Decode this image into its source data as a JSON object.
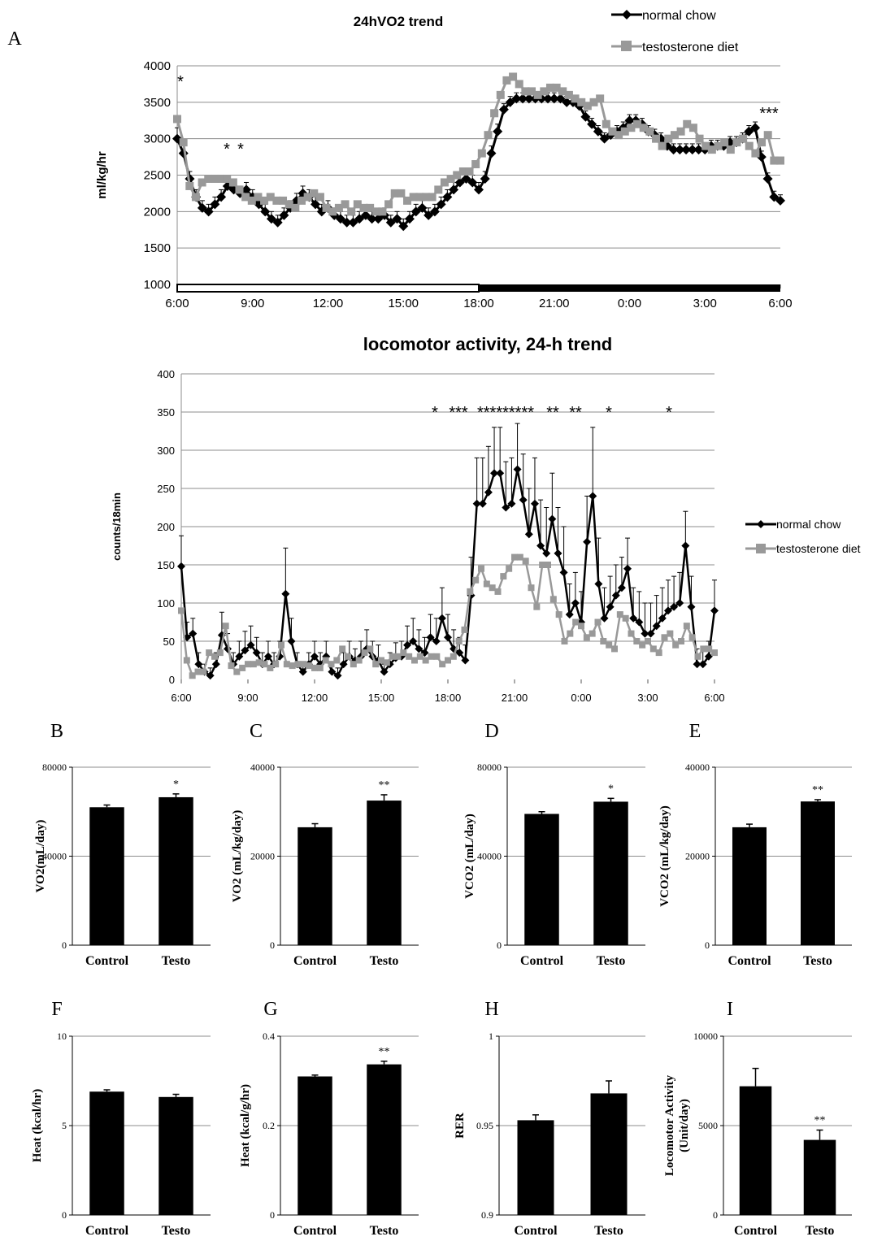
{
  "chart_data": [
    {
      "panel": "A",
      "type": "line",
      "title": "24hVO2 trend",
      "ylabel": "ml/kg/hr",
      "ylim": [
        1000,
        4000
      ],
      "yticks": [
        "1000",
        "1500",
        "2000",
        "2500",
        "3000",
        "3500",
        "4000"
      ],
      "xticks": [
        "6:00",
        "9:00",
        "12:00",
        "15:00",
        "18:00",
        "21:00",
        "0:00",
        "3:00",
        "6:00"
      ],
      "light_dark_bar": {
        "light": "6:00-18:00",
        "dark": "18:00-6:00"
      },
      "legend_position": "top-right",
      "series": [
        {
          "name": "normal chow",
          "color": "#000000",
          "marker": "diamond",
          "values": [
            3000,
            2800,
            2450,
            2200,
            2050,
            2000,
            2100,
            2200,
            2350,
            2300,
            2250,
            2300,
            2200,
            2100,
            2000,
            1900,
            1850,
            1950,
            2050,
            2150,
            2250,
            2200,
            2100,
            2000,
            2050,
            1950,
            1900,
            1850,
            1850,
            1900,
            1950,
            1900,
            1900,
            1950,
            1850,
            1900,
            1800,
            1900,
            2000,
            2050,
            1950,
            2000,
            2100,
            2200,
            2300,
            2400,
            2450,
            2400,
            2300,
            2450,
            2800,
            3100,
            3400,
            3500,
            3550,
            3550,
            3550,
            3550,
            3550,
            3550,
            3550,
            3550,
            3500,
            3500,
            3450,
            3300,
            3200,
            3100,
            3000,
            3050,
            3100,
            3150,
            3250,
            3250,
            3200,
            3100,
            3050,
            3000,
            2900,
            2850,
            2850,
            2850,
            2850,
            2850,
            2850,
            2900,
            2900,
            2900,
            2950,
            2950,
            3000,
            3100,
            3150,
            2750,
            2450,
            2200,
            2150
          ],
          "errors": [
            150,
            120,
            100,
            100,
            100,
            100,
            100,
            100,
            100,
            100,
            100,
            100,
            100,
            100,
            100,
            100,
            100,
            100,
            100,
            100,
            100,
            100,
            100,
            100,
            100,
            100,
            100,
            100,
            100,
            100,
            100,
            100,
            100,
            100,
            100,
            100,
            100,
            100,
            100,
            100,
            100,
            100,
            100,
            100,
            100,
            100,
            100,
            100,
            100,
            100,
            100,
            100,
            80,
            80,
            80,
            80,
            80,
            80,
            80,
            80,
            80,
            80,
            80,
            80,
            80,
            80,
            80,
            80,
            80,
            80,
            80,
            80,
            80,
            80,
            80,
            80,
            80,
            80,
            80,
            80,
            80,
            80,
            80,
            80,
            80,
            80,
            80,
            80,
            80,
            80,
            80,
            80,
            80,
            80,
            80,
            80,
            80
          ]
        },
        {
          "name": "testosterone diet",
          "color": "#999999",
          "marker": "square",
          "values": [
            3270,
            2950,
            2350,
            2200,
            2400,
            2450,
            2450,
            2450,
            2450,
            2400,
            2300,
            2200,
            2150,
            2200,
            2150,
            2200,
            2150,
            2150,
            2100,
            2050,
            2150,
            2200,
            2250,
            2200,
            2050,
            2000,
            2050,
            2100,
            2000,
            2100,
            2050,
            2050,
            2000,
            2000,
            2100,
            2250,
            2250,
            2150,
            2200,
            2200,
            2200,
            2200,
            2300,
            2400,
            2450,
            2500,
            2550,
            2550,
            2650,
            2800,
            3050,
            3350,
            3600,
            3800,
            3850,
            3750,
            3650,
            3650,
            3600,
            3650,
            3700,
            3700,
            3650,
            3600,
            3550,
            3500,
            3450,
            3500,
            3550,
            3200,
            3100,
            3050,
            3100,
            3150,
            3200,
            3150,
            3100,
            3000,
            2900,
            3000,
            3050,
            3100,
            3200,
            3150,
            3000,
            2900,
            2850,
            2900,
            2950,
            2850,
            2950,
            3000,
            2900,
            2800,
            2950,
            3050,
            2700,
            2700
          ]
        }
      ],
      "annotations": [
        "*",
        "*",
        "*",
        "***"
      ]
    },
    {
      "panel": "A2",
      "type": "line",
      "title": "locomotor activity, 24-h trend",
      "ylabel": "counts/18min",
      "ylim": [
        0,
        400
      ],
      "yticks": [
        "0",
        "50",
        "100",
        "150",
        "200",
        "250",
        "300",
        "350",
        "400"
      ],
      "xticks": [
        "6:00",
        "9:00",
        "12:00",
        "15:00",
        "18:00",
        "21:00",
        "0:00",
        "3:00",
        "6:00"
      ],
      "legend_position": "right",
      "series": [
        {
          "name": "normal chow",
          "color": "#000000",
          "marker": "diamond",
          "values": [
            148,
            55,
            60,
            20,
            10,
            5,
            20,
            58,
            40,
            20,
            30,
            38,
            45,
            35,
            20,
            30,
            20,
            30,
            112,
            50,
            20,
            10,
            20,
            30,
            20,
            30,
            10,
            5,
            20,
            30,
            25,
            30,
            40,
            30,
            25,
            10,
            20,
            28,
            30,
            45,
            50,
            40,
            35,
            55,
            50,
            80,
            55,
            40,
            35,
            25,
            110,
            230,
            230,
            245,
            270,
            270,
            225,
            230,
            275,
            235,
            190,
            230,
            175,
            165,
            210,
            165,
            140,
            85,
            100,
            75,
            180,
            240,
            125,
            80,
            95,
            110,
            120,
            145,
            80,
            75,
            60,
            60,
            70,
            80,
            90,
            95,
            100,
            175,
            95,
            20,
            20,
            30,
            90
          ],
          "errors": [
            40,
            20,
            20,
            15,
            10,
            10,
            15,
            30,
            20,
            15,
            20,
            25,
            25,
            20,
            15,
            20,
            15,
            20,
            60,
            30,
            15,
            10,
            15,
            20,
            15,
            20,
            10,
            10,
            15,
            20,
            15,
            20,
            25,
            20,
            20,
            10,
            15,
            20,
            20,
            25,
            30,
            25,
            20,
            30,
            30,
            40,
            30,
            25,
            20,
            20,
            50,
            60,
            60,
            60,
            60,
            60,
            60,
            60,
            60,
            60,
            60,
            60,
            60,
            60,
            60,
            60,
            60,
            40,
            40,
            40,
            60,
            90,
            60,
            40,
            40,
            40,
            40,
            40,
            40,
            40,
            40,
            40,
            40,
            40,
            40,
            40,
            40,
            45,
            40,
            20,
            20,
            20,
            40
          ]
        },
        {
          "name": "testosterone diet",
          "color": "#999999",
          "marker": "square",
          "values": [
            90,
            25,
            5,
            10,
            10,
            35,
            30,
            35,
            70,
            18,
            10,
            15,
            20,
            20,
            22,
            20,
            15,
            20,
            45,
            20,
            18,
            20,
            20,
            18,
            15,
            15,
            25,
            20,
            25,
            40,
            30,
            20,
            25,
            35,
            40,
            20,
            25,
            22,
            30,
            30,
            35,
            30,
            25,
            30,
            25,
            30,
            30,
            20,
            25,
            30,
            50,
            65,
            115,
            130,
            145,
            125,
            120,
            115,
            135,
            145,
            160,
            160,
            155,
            120,
            95,
            150,
            150,
            105,
            85,
            50,
            60,
            75,
            70,
            55,
            60,
            75,
            50,
            45,
            40,
            85,
            80,
            60,
            50,
            45,
            50,
            40,
            35,
            55,
            60,
            45,
            50,
            70,
            55,
            30,
            40,
            40,
            35
          ]
        }
      ],
      "annotations": [
        "*",
        "***",
        "*********",
        "**",
        "**",
        "*",
        "*"
      ]
    },
    {
      "panel": "B",
      "type": "bar",
      "categories": [
        "Control",
        "Testo"
      ],
      "values": [
        62000,
        66500
      ],
      "errors": [
        1000,
        1500
      ],
      "ylabel": "VO2(mL/day)",
      "ylim": [
        0,
        80000
      ],
      "yticks": [
        "0",
        "40000",
        "80000"
      ],
      "significance": [
        "",
        "*"
      ]
    },
    {
      "panel": "C",
      "type": "bar",
      "categories": [
        "Control",
        "Testo"
      ],
      "values": [
        26500,
        32500
      ],
      "errors": [
        800,
        1300
      ],
      "ylabel": "VO2 (mL/kg/day)",
      "ylim": [
        0,
        40000
      ],
      "yticks": [
        "0",
        "20000",
        "40000"
      ],
      "significance": [
        "",
        "**"
      ]
    },
    {
      "panel": "D",
      "type": "bar",
      "categories": [
        "Control",
        "Testo"
      ],
      "values": [
        59000,
        64500
      ],
      "errors": [
        1000,
        1500
      ],
      "ylabel": "VCO2 (mL/day)",
      "ylim": [
        0,
        80000
      ],
      "yticks": [
        "0",
        "40000",
        "80000"
      ],
      "significance": [
        "",
        "*"
      ]
    },
    {
      "panel": "E",
      "type": "bar",
      "categories": [
        "Control",
        "Testo"
      ],
      "values": [
        26500,
        32300
      ],
      "errors": [
        700,
        400
      ],
      "ylabel": "VCO2 (mL/kg/day)",
      "ylim": [
        0,
        40000
      ],
      "yticks": [
        "0",
        "20000",
        "40000"
      ],
      "significance": [
        "",
        "**"
      ]
    },
    {
      "panel": "F",
      "type": "bar",
      "categories": [
        "Control",
        "Testo"
      ],
      "values": [
        6.9,
        6.6
      ],
      "errors": [
        0.1,
        0.15
      ],
      "ylabel": "Heat (kcal/hr)",
      "ylim": [
        0,
        10
      ],
      "yticks": [
        "0",
        "5",
        "10"
      ],
      "significance": [
        "",
        ""
      ]
    },
    {
      "panel": "G",
      "type": "bar",
      "categories": [
        "Control",
        "Testo"
      ],
      "values": [
        0.31,
        0.337
      ],
      "errors": [
        0.003,
        0.007
      ],
      "ylabel": "Heat (kcal/g/hr)",
      "ylim": [
        0,
        0.4
      ],
      "yticks": [
        "0",
        "0.2",
        "0.4"
      ],
      "significance": [
        "",
        "**"
      ]
    },
    {
      "panel": "H",
      "type": "bar",
      "categories": [
        "Control",
        "Testo"
      ],
      "values": [
        0.953,
        0.968
      ],
      "errors": [
        0.003,
        0.007
      ],
      "ylabel": "RER",
      "ylim": [
        0.9,
        1
      ],
      "yticks": [
        "0.9",
        "0.95",
        "1"
      ],
      "significance": [
        "",
        ""
      ]
    },
    {
      "panel": "I",
      "type": "bar",
      "categories": [
        "Control",
        "Testo"
      ],
      "values": [
        7200,
        4200
      ],
      "errors": [
        1000,
        550
      ],
      "ylabel": "Locomotor Activity (Unit/day)",
      "ylim": [
        0,
        10000
      ],
      "yticks": [
        "0",
        "5000",
        "10000"
      ],
      "significance": [
        "",
        "**"
      ]
    }
  ],
  "panel_letters": {
    "A": "A",
    "B": "B",
    "C": "C",
    "D": "D",
    "E": "E",
    "F": "F",
    "G": "G",
    "H": "H",
    "I": "I"
  }
}
